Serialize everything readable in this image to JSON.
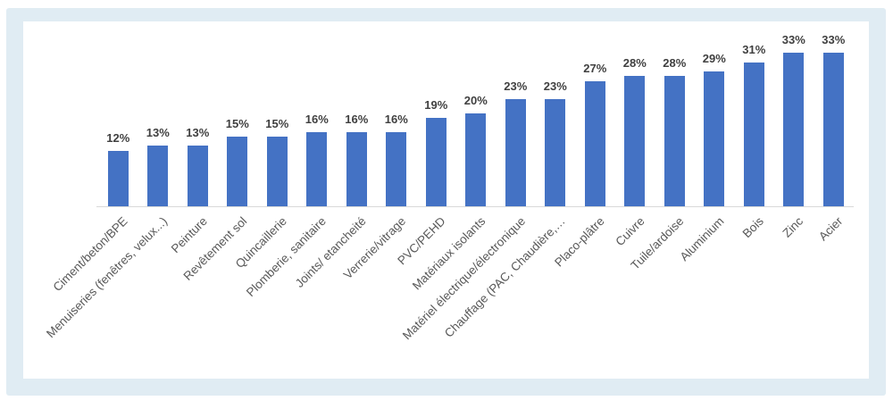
{
  "chart_data": {
    "type": "bar",
    "title": "",
    "xlabel": "",
    "ylabel": "",
    "unit": "%",
    "ylim": [
      0,
      35
    ],
    "gridlines": false,
    "legend": null,
    "y_axis_visible": false,
    "categories": [
      "Ciment/beton/BPE",
      "Menuiseries (fenêtres, velux...)",
      "Peinture",
      "Revêtement sol",
      "Quincaillerie",
      "Plomberie, sanitaire",
      "Joints/ etancheité",
      "Verrerie/vitrage",
      "PVC/PEHD",
      "Matériaux isolants",
      "Matériel électrique/électronique",
      "Chauffage (PAC, Chaudière,…",
      "Placo-plâtre",
      "Cuivre",
      "Tuile/ardoise",
      "Aluminium",
      "Bois",
      "Zinc",
      "Acier"
    ],
    "values": [
      12,
      13,
      13,
      15,
      15,
      16,
      16,
      16,
      19,
      20,
      23,
      23,
      27,
      28,
      28,
      29,
      31,
      33,
      33
    ],
    "data_labels": [
      "12%",
      "13%",
      "13%",
      "15%",
      "15%",
      "16%",
      "16%",
      "16%",
      "19%",
      "20%",
      "23%",
      "23%",
      "27%",
      "28%",
      "28%",
      "29%",
      "31%",
      "33%",
      "33%"
    ],
    "category_label_rotation_deg": -45,
    "style": {
      "bar_color": "#4472C4",
      "data_label_color": "#404040",
      "category_label_color": "#595959",
      "axis_line_color": "#D9D9D9",
      "frame_background": "#E0ECF3",
      "chart_background": "#FFFFFF"
    }
  }
}
